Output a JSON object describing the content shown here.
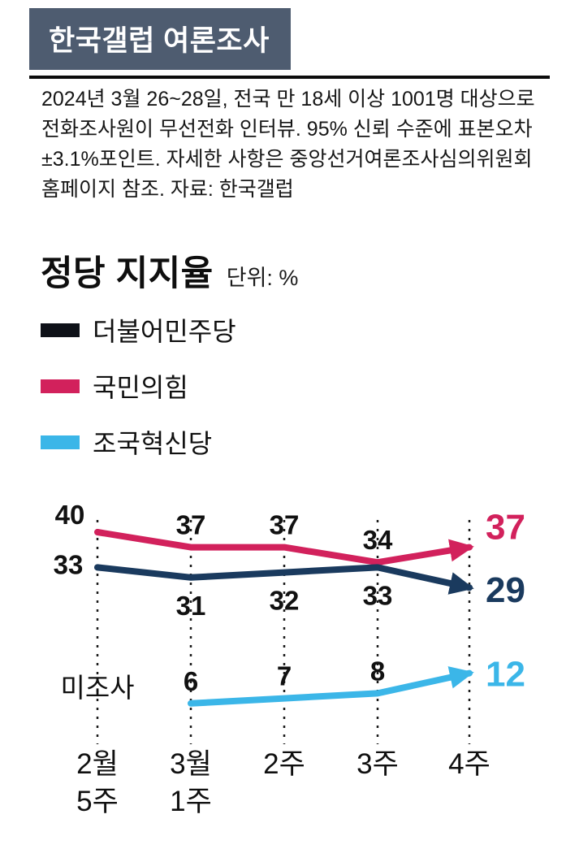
{
  "header": {
    "title": "한국갤럽 여론조사"
  },
  "source_note": "2024년 3월 26~28일, 전국 만 18세 이상 1001명 대상으로 전화조사원이 무선전화 인터뷰. 95% 신뢰 수준에 표본오차 ±3.1%포인트. 자세한 사항은 중앙선거여론조사심의위원회 홈페이지 참조. 자료: 한국갤럽",
  "chart_title": {
    "title": "정당 지지율",
    "unit": "단위: %"
  },
  "legend": {
    "items": [
      {
        "label": "더불어민주당",
        "color": "#0e1118"
      },
      {
        "label": "국민의힘",
        "color": "#d2215c"
      },
      {
        "label": "조국혁신당",
        "color": "#3bb6e8"
      }
    ]
  },
  "chart_data": {
    "type": "line",
    "title": "정당 지지율",
    "unit": "%",
    "categories": [
      "2월 5주",
      "3월 1주",
      "2주",
      "3주",
      "4주"
    ],
    "category_lines": [
      [
        "2월",
        "5주"
      ],
      [
        "3월",
        "1주"
      ],
      [
        "2주"
      ],
      [
        "3주"
      ],
      [
        "4주"
      ]
    ],
    "series": [
      {
        "name": "국민의힘",
        "color": "#d2215c",
        "values": [
          40,
          37,
          37,
          34,
          37
        ]
      },
      {
        "name": "더불어민주당",
        "color": "#1a3a5e",
        "values": [
          33,
          31,
          32,
          33,
          29
        ]
      },
      {
        "name": "조국혁신당",
        "color": "#3bb6e8",
        "values": [
          null,
          6,
          7,
          8,
          12
        ],
        "missing_label": "미조사"
      }
    ],
    "ylim": [
      0,
      45
    ],
    "grid": "dashed-vertical",
    "legend_position": "top-left"
  }
}
